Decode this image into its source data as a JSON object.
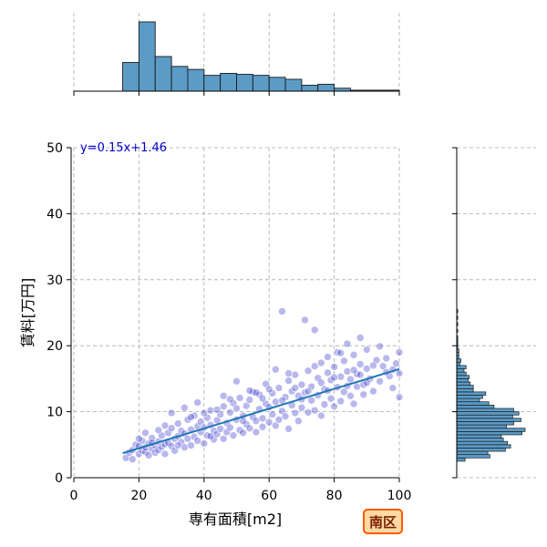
{
  "chart_data": {
    "type": "scatter",
    "xlabel": "専有面積[m2]",
    "ylabel": "賃料[万円]",
    "xlim": [
      0,
      100
    ],
    "ylim": [
      0,
      50
    ],
    "xticks": [
      "0",
      "20",
      "40",
      "60",
      "80",
      "100"
    ],
    "yticks": [
      "0",
      "10",
      "20",
      "30",
      "40",
      "50"
    ],
    "grid": true,
    "annotation": "y=0.15x+1.46",
    "badge": "南区",
    "regression": {
      "slope": 0.15,
      "intercept": 1.46,
      "x_range": [
        15,
        100
      ]
    },
    "scatter_points": [
      [
        16,
        3.0
      ],
      [
        17,
        3.8
      ],
      [
        18,
        4.2
      ],
      [
        18,
        2.8
      ],
      [
        19,
        5.0
      ],
      [
        20,
        3.6
      ],
      [
        20,
        4.8
      ],
      [
        21,
        4.1
      ],
      [
        21,
        5.6
      ],
      [
        22,
        3.9
      ],
      [
        22,
        4.6
      ],
      [
        23,
        5.2
      ],
      [
        23,
        3.4
      ],
      [
        24,
        4.4
      ],
      [
        24,
        6.0
      ],
      [
        25,
        4.9
      ],
      [
        25,
        3.8
      ],
      [
        26,
        5.5
      ],
      [
        26,
        4.2
      ],
      [
        27,
        6.4
      ],
      [
        27,
        4.7
      ],
      [
        28,
        5.1
      ],
      [
        28,
        3.6
      ],
      [
        29,
        6.8
      ],
      [
        29,
        5.3
      ],
      [
        30,
        4.8
      ],
      [
        30,
        7.5
      ],
      [
        31,
        5.9
      ],
      [
        31,
        4.1
      ],
      [
        32,
        6.3
      ],
      [
        32,
        8.2
      ],
      [
        33,
        5.4
      ],
      [
        33,
        7.1
      ],
      [
        34,
        4.6
      ],
      [
        34,
        6.7
      ],
      [
        35,
        8.8
      ],
      [
        35,
        5.9
      ],
      [
        36,
        7.3
      ],
      [
        36,
        4.9
      ],
      [
        37,
        6.2
      ],
      [
        37,
        9.4
      ],
      [
        38,
        7.8
      ],
      [
        38,
        5.6
      ],
      [
        39,
        6.9
      ],
      [
        39,
        8.5
      ],
      [
        40,
        5.2
      ],
      [
        40,
        7.6
      ],
      [
        41,
        9.1
      ],
      [
        41,
        6.4
      ],
      [
        42,
        8.0
      ],
      [
        42,
        10.2
      ],
      [
        43,
        7.1
      ],
      [
        43,
        5.8
      ],
      [
        44,
        8.7
      ],
      [
        44,
        6.6
      ],
      [
        45,
        9.6
      ],
      [
        45,
        7.4
      ],
      [
        46,
        5.9
      ],
      [
        46,
        10.8
      ],
      [
        47,
        8.3
      ],
      [
        47,
        6.9
      ],
      [
        48,
        9.9
      ],
      [
        48,
        7.6
      ],
      [
        49,
        11.3
      ],
      [
        49,
        6.4
      ],
      [
        50,
        8.8
      ],
      [
        50,
        10.5
      ],
      [
        51,
        7.2
      ],
      [
        51,
        12.1
      ],
      [
        52,
        9.4
      ],
      [
        52,
        6.8
      ],
      [
        53,
        10.9
      ],
      [
        53,
        8.1
      ],
      [
        54,
        7.5
      ],
      [
        54,
        11.8
      ],
      [
        55,
        9.2
      ],
      [
        55,
        13.0
      ],
      [
        56,
        8.6
      ],
      [
        56,
        6.9
      ],
      [
        57,
        10.4
      ],
      [
        57,
        12.6
      ],
      [
        58,
        9.0
      ],
      [
        58,
        7.7
      ],
      [
        59,
        11.2
      ],
      [
        59,
        14.2
      ],
      [
        60,
        8.4
      ],
      [
        60,
        10.7
      ],
      [
        61,
        12.8
      ],
      [
        61,
        9.6
      ],
      [
        62,
        7.9
      ],
      [
        62,
        11.5
      ],
      [
        63,
        13.6
      ],
      [
        63,
        8.8
      ],
      [
        64,
        10.1
      ],
      [
        64,
        25.2
      ],
      [
        65,
        12.2
      ],
      [
        65,
        9.3
      ],
      [
        66,
        14.7
      ],
      [
        66,
        7.4
      ],
      [
        67,
        11.0
      ],
      [
        67,
        13.1
      ],
      [
        68,
        9.8
      ],
      [
        68,
        15.6
      ],
      [
        69,
        12.4
      ],
      [
        69,
        8.6
      ],
      [
        70,
        10.6
      ],
      [
        70,
        14.1
      ],
      [
        71,
        12.9
      ],
      [
        71,
        23.9
      ],
      [
        72,
        9.9
      ],
      [
        72,
        16.2
      ],
      [
        73,
        11.7
      ],
      [
        73,
        13.8
      ],
      [
        74,
        10.2
      ],
      [
        74,
        22.4
      ],
      [
        75,
        15.1
      ],
      [
        75,
        12.5
      ],
      [
        76,
        9.4
      ],
      [
        76,
        17.4
      ],
      [
        77,
        13.4
      ],
      [
        77,
        11.1
      ],
      [
        78,
        15.9
      ],
      [
        78,
        18.3
      ],
      [
        79,
        12.0
      ],
      [
        79,
        14.8
      ],
      [
        80,
        10.8
      ],
      [
        80,
        16.8
      ],
      [
        81,
        13.7
      ],
      [
        81,
        19.0
      ],
      [
        82,
        15.3
      ],
      [
        82,
        11.6
      ],
      [
        83,
        17.7
      ],
      [
        83,
        13.0
      ],
      [
        84,
        16.1
      ],
      [
        84,
        20.3
      ],
      [
        85,
        12.4
      ],
      [
        85,
        14.9
      ],
      [
        86,
        18.6
      ],
      [
        86,
        11.2
      ],
      [
        87,
        15.7
      ],
      [
        87,
        13.8
      ],
      [
        88,
        17.2
      ],
      [
        88,
        21.2
      ],
      [
        89,
        14.1
      ],
      [
        89,
        12.6
      ],
      [
        90,
        16.5
      ],
      [
        90,
        19.4
      ],
      [
        91,
        15.0
      ],
      [
        92,
        13.1
      ],
      [
        93,
        17.8
      ],
      [
        94,
        14.6
      ],
      [
        95,
        16.9
      ],
      [
        96,
        18.1
      ],
      [
        97,
        15.4
      ],
      [
        98,
        13.6
      ],
      [
        99,
        17.3
      ],
      [
        100,
        12.2
      ],
      [
        100,
        19.0
      ],
      [
        100,
        15.8
      ],
      [
        22,
        6.8
      ],
      [
        26,
        7.2
      ],
      [
        30,
        9.8
      ],
      [
        34,
        10.6
      ],
      [
        38,
        11.4
      ],
      [
        42,
        6.3
      ],
      [
        46,
        12.4
      ],
      [
        50,
        14.6
      ],
      [
        54,
        13.2
      ],
      [
        58,
        12.0
      ],
      [
        62,
        16.4
      ],
      [
        66,
        15.8
      ],
      [
        70,
        11.9
      ],
      [
        74,
        16.9
      ],
      [
        78,
        13.2
      ],
      [
        82,
        18.9
      ],
      [
        86,
        16.3
      ],
      [
        90,
        14.4
      ],
      [
        94,
        19.9
      ],
      [
        98,
        16.4
      ],
      [
        20,
        5.9
      ],
      [
        24,
        5.3
      ],
      [
        28,
        7.9
      ],
      [
        32,
        4.9
      ],
      [
        36,
        9.2
      ],
      [
        40,
        9.8
      ],
      [
        44,
        10.3
      ],
      [
        48,
        11.9
      ],
      [
        52,
        8.6
      ],
      [
        56,
        12.9
      ],
      [
        60,
        13.4
      ],
      [
        64,
        11.7
      ],
      [
        68,
        13.6
      ],
      [
        72,
        13.1
      ],
      [
        76,
        14.4
      ],
      [
        80,
        15.2
      ],
      [
        84,
        13.9
      ],
      [
        88,
        15.6
      ],
      [
        92,
        17.0
      ],
      [
        96,
        16.0
      ]
    ],
    "x_hist": {
      "edges": [
        15,
        20,
        25,
        30,
        35,
        40,
        45,
        50,
        55,
        60,
        65,
        70,
        75,
        80,
        85,
        90,
        95,
        100
      ],
      "counts": [
        29,
        70,
        35,
        25,
        22,
        16,
        18,
        17,
        16,
        14,
        12,
        6,
        7,
        3,
        1,
        1,
        1
      ]
    },
    "y_hist": {
      "edges": [
        2.5,
        3.0,
        3.5,
        4.0,
        4.5,
        5.0,
        5.5,
        6.0,
        6.5,
        7.0,
        7.5,
        8.0,
        8.5,
        9.0,
        9.5,
        10.0,
        10.5,
        11.0,
        11.5,
        12.0,
        12.5,
        13.0,
        13.5,
        14.0,
        14.5,
        15.0,
        15.5,
        16.0,
        16.5,
        17.0,
        17.5,
        18.0,
        18.5,
        19.0,
        19.5,
        20.0,
        20.5,
        21.0,
        21.5,
        22.0,
        22.5,
        23.0,
        23.5,
        24.0,
        24.5,
        25.0,
        25.5
      ],
      "counts": [
        8,
        32,
        30,
        47,
        52,
        49,
        45,
        43,
        63,
        66,
        48,
        55,
        62,
        54,
        60,
        55,
        36,
        31,
        22,
        25,
        28,
        16,
        16,
        13,
        11,
        12,
        9,
        7,
        9,
        3,
        4,
        2,
        2,
        2,
        1,
        1,
        1,
        1,
        0,
        1,
        0,
        1,
        0,
        1,
        0,
        1
      ]
    }
  }
}
